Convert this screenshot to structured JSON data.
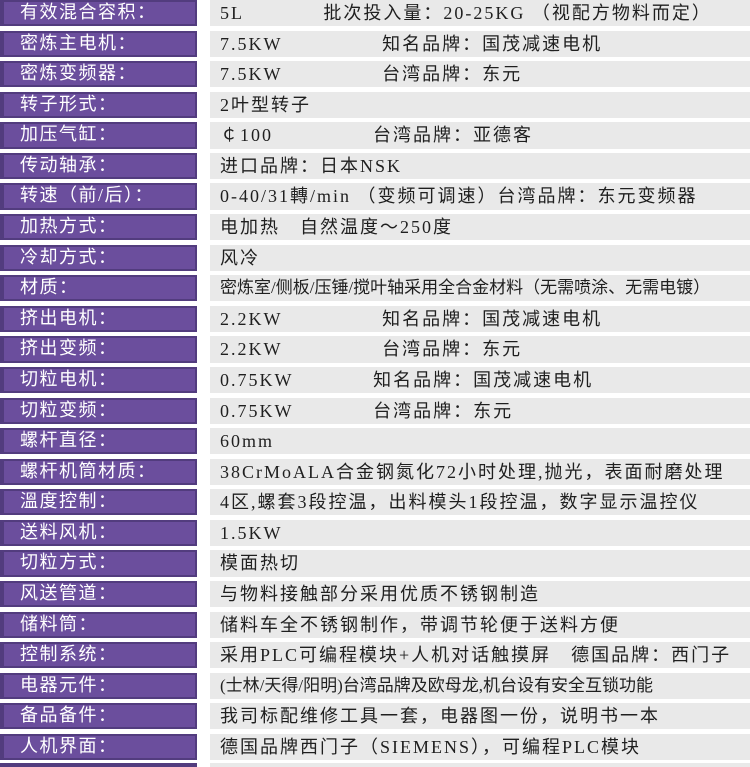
{
  "colors": {
    "label_bg": "#6b4e9d",
    "label_border": "#523c7e",
    "label_text": "#ffffff",
    "value_bg": "#e9e9e9",
    "value_text": "#1f1f1f",
    "row_gap": "#ffffff"
  },
  "table": {
    "rows": [
      {
        "label": "有效混合容积：",
        "value": "5L　　　　批次投入量：20-25KG （视配方物料而定）"
      },
      {
        "label": "密炼主电机：",
        "value": "7.5KW　　　　　知名品牌：国茂减速电机"
      },
      {
        "label": "密炼变频器：",
        "value": "7.5KW　　　　　台湾品牌：东元"
      },
      {
        "label": "转子形式：",
        "value": "2叶型转子"
      },
      {
        "label": "加压气缸：",
        "value": "￠100　　　　　台湾品牌：亚德客"
      },
      {
        "label": "传动轴承：",
        "value": "进口品牌：日本NSK"
      },
      {
        "label": "转速（前/后）：",
        "value": "0-40/31轉/min （变频可调速）台湾品牌：东元变频器"
      },
      {
        "label": "加热方式：",
        "value": "电加热　自然温度～250度"
      },
      {
        "label": "冷却方式：",
        "value": "风冷"
      },
      {
        "label": "材质：",
        "value": "密炼室/侧板/压锤/搅叶轴采用全合金材料（无需喷涂、无需电镀）"
      },
      {
        "label": "挤出电机：",
        "value": "2.2KW　　　　　知名品牌：国茂减速电机"
      },
      {
        "label": "挤出变频：",
        "value": "2.2KW　　　　　台湾品牌：东元"
      },
      {
        "label": "切粒电机：",
        "value": "0.75KW　　　　知名品牌：国茂减速电机"
      },
      {
        "label": "切粒变频：",
        "value": "0.75KW　　　　台湾品牌：东元"
      },
      {
        "label": "螺杆直径：",
        "value": "60mm"
      },
      {
        "label": "螺杆机筒材质：",
        "value": "38CrMoALA合金钢氮化72小时处理,抛光，表面耐磨处理"
      },
      {
        "label": "溫度控制：",
        "value": "4区,螺套3段控温，出料模头1段控温，数字显示温控仪"
      },
      {
        "label": "送料风机：",
        "value": "1.5KW"
      },
      {
        "label": "切粒方式：",
        "value": "模面热切"
      },
      {
        "label": "风送管道：",
        "value": "与物料接触部分采用优质不锈钢制造"
      },
      {
        "label": "储料筒：",
        "value": "储料车全不锈钢制作，带调节轮便于送料方便"
      },
      {
        "label": "控制系统：",
        "value": "采用PLC可编程模块+人机对话触摸屏　德国品牌：西门子"
      },
      {
        "label": "电器元件：",
        "value": "(士林/天得/阳明)台湾品牌及欧母龙,机台设有安全互锁功能"
      },
      {
        "label": "备品备件：",
        "value": "我司标配维修工具一套，电器图一份，说明书一本"
      },
      {
        "label": "人机界面：",
        "value": "德国品牌西门子（SIEMENS），可编程PLC模块"
      }
    ]
  }
}
